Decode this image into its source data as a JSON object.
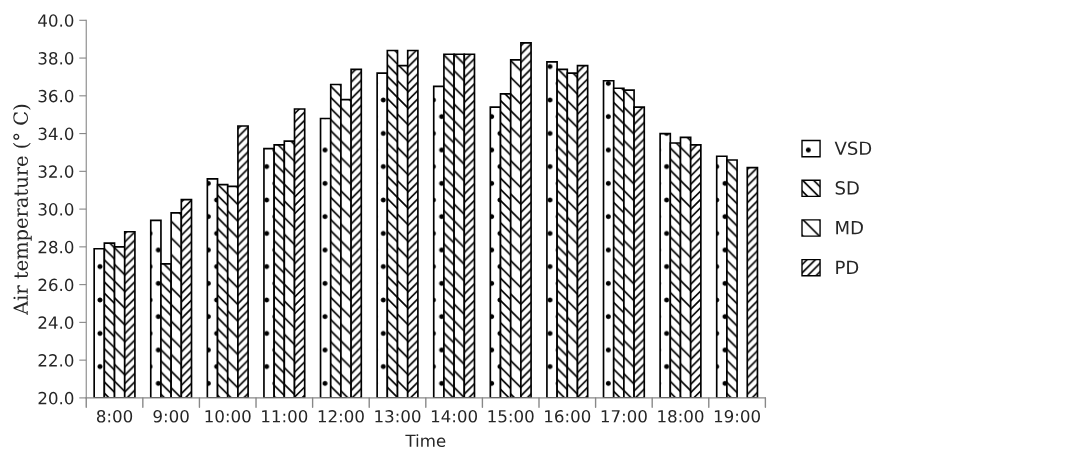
{
  "chart_data": {
    "type": "bar",
    "xlabel": "Time",
    "ylabel": "Air temperature (° C)",
    "categories": [
      "8:00",
      "9:00",
      "10:00",
      "11:00",
      "12:00",
      "13:00",
      "14:00",
      "15:00",
      "16:00",
      "17:00",
      "18:00",
      "19:00"
    ],
    "series": [
      {
        "name": "VSD",
        "color": "#000000",
        "values": [
          27.9,
          29.4,
          31.6,
          33.2,
          34.8,
          37.2,
          36.5,
          35.4,
          37.8,
          36.8,
          34.0,
          32.8
        ]
      },
      {
        "name": "SD",
        "color": "#000000",
        "values": [
          28.2,
          27.1,
          31.3,
          33.4,
          36.6,
          38.4,
          38.2,
          36.1,
          37.4,
          36.4,
          33.5,
          32.6
        ]
      },
      {
        "name": "MD",
        "color": "#000000",
        "values": [
          28.0,
          29.8,
          31.2,
          33.6,
          35.8,
          37.6,
          38.2,
          37.9,
          37.2,
          36.3,
          33.8,
          null
        ]
      },
      {
        "name": "PD",
        "color": "#000000",
        "values": [
          28.8,
          30.5,
          34.4,
          35.3,
          37.4,
          38.4,
          38.2,
          38.8,
          37.6,
          35.4,
          33.4,
          32.2
        ]
      }
    ],
    "ylim": [
      20,
      40
    ],
    "yticks": [
      {
        "value": 20,
        "label": "20.0"
      },
      {
        "value": 22,
        "label": "22.0"
      },
      {
        "value": 24,
        "label": "24.0"
      },
      {
        "value": 26,
        "label": "26.0"
      },
      {
        "value": 28,
        "label": "28.0"
      },
      {
        "value": 30,
        "label": "30.0"
      },
      {
        "value": 32,
        "label": "32.0"
      },
      {
        "value": 34,
        "label": "34.0"
      },
      {
        "value": 36,
        "label": "36.0"
      },
      {
        "value": 38,
        "label": "38.0"
      },
      {
        "value": 40,
        "label": "40.0"
      }
    ],
    "grid": false,
    "legend": "right"
  }
}
